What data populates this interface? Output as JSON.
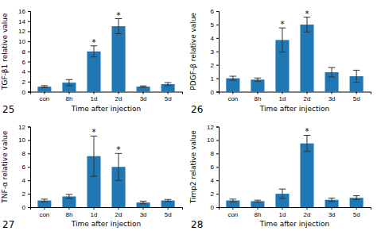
{
  "chart_data": [
    {
      "type": "bar",
      "title": "25",
      "xlabel": "Time after injection",
      "ylabel": "TGF-β1 relative value",
      "categories": [
        "con",
        "8h",
        "1d",
        "2d",
        "3d",
        "5d"
      ],
      "values": [
        1.0,
        1.8,
        8.0,
        13.0,
        1.0,
        1.5
      ],
      "errors": [
        0.2,
        0.6,
        1.1,
        1.5,
        0.15,
        0.3
      ],
      "ylim": [
        0,
        16
      ],
      "yticks": [
        0,
        2,
        4,
        6,
        8,
        10,
        12,
        14,
        16
      ],
      "annotations": [
        {
          "text": "*",
          "x": "1d"
        },
        {
          "text": "*",
          "x": "2d"
        }
      ]
    },
    {
      "type": "bar",
      "title": "26",
      "xlabel": "Time after injection",
      "ylabel": "PDGF-β relative value",
      "categories": [
        "con",
        "8h",
        "1d",
        "2d",
        "3d",
        "5d"
      ],
      "values": [
        1.0,
        0.9,
        3.85,
        5.0,
        1.45,
        1.15
      ],
      "errors": [
        0.15,
        0.12,
        0.9,
        0.55,
        0.35,
        0.45
      ],
      "ylim": [
        0,
        6
      ],
      "yticks": [
        0,
        1,
        2,
        3,
        4,
        5,
        6
      ],
      "annotations": [
        {
          "text": "*",
          "x": "1d"
        },
        {
          "text": "*",
          "x": "2d"
        }
      ]
    },
    {
      "type": "bar",
      "title": "27",
      "xlabel": "Time after injection",
      "ylabel": "TNF-α relative value",
      "categories": [
        "con",
        "8h",
        "1d",
        "2d",
        "3d",
        "5d"
      ],
      "values": [
        1.0,
        1.6,
        7.6,
        6.0,
        0.7,
        1.0
      ],
      "errors": [
        0.2,
        0.3,
        3.0,
        2.0,
        0.2,
        0.15
      ],
      "ylim": [
        0,
        12
      ],
      "yticks": [
        0,
        2,
        4,
        6,
        8,
        10,
        12
      ],
      "annotations": [
        {
          "text": "*",
          "x": "1d"
        },
        {
          "text": "*",
          "x": "2d"
        }
      ]
    },
    {
      "type": "bar",
      "title": "28",
      "xlabel": "Time after injection",
      "ylabel": "Timp2 relative value",
      "categories": [
        "con",
        "8h",
        "1d",
        "2d",
        "3d",
        "5d"
      ],
      "values": [
        1.0,
        0.9,
        2.0,
        9.5,
        1.1,
        1.4
      ],
      "errors": [
        0.2,
        0.15,
        0.7,
        1.2,
        0.25,
        0.3
      ],
      "ylim": [
        0,
        12
      ],
      "yticks": [
        0,
        2,
        4,
        6,
        8,
        10,
        12
      ],
      "annotations": [
        {
          "text": "*",
          "x": "2d"
        }
      ]
    }
  ]
}
